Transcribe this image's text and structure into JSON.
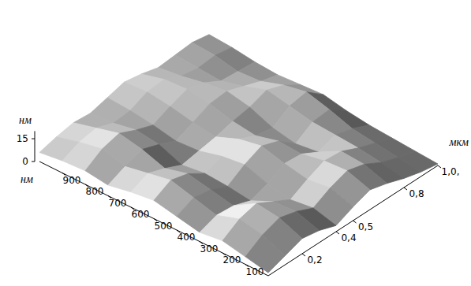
{
  "chart_data": {
    "type": "surface",
    "x_label": "нм",
    "y_label": "мкм",
    "z_label": "нм",
    "x": [
      0,
      100,
      200,
      300,
      400,
      500,
      600,
      700,
      800,
      900,
      1000
    ],
    "y": [
      0,
      0.1,
      0.2,
      0.3,
      0.4,
      0.5,
      0.6,
      0.7,
      0.8,
      0.9,
      1.0
    ],
    "z": [
      [
        2,
        6,
        10,
        8,
        4,
        9,
        13,
        10,
        6,
        3,
        1
      ],
      [
        5,
        12,
        16,
        13,
        8,
        14,
        18,
        15,
        9,
        5,
        2
      ],
      [
        8,
        15,
        18,
        12,
        6,
        12,
        17,
        16,
        11,
        7,
        3
      ],
      [
        6,
        10,
        9,
        5,
        9,
        15,
        14,
        8,
        12,
        9,
        4
      ],
      [
        9,
        14,
        12,
        7,
        14,
        19,
        15,
        6,
        13,
        14,
        6
      ],
      [
        12,
        18,
        15,
        8,
        12,
        16,
        11,
        9,
        16,
        18,
        9
      ],
      [
        10,
        15,
        11,
        6,
        8,
        10,
        13,
        15,
        19,
        15,
        8
      ],
      [
        7,
        12,
        16,
        12,
        7,
        12,
        17,
        18,
        14,
        10,
        7
      ],
      [
        9,
        16,
        19,
        14,
        10,
        15,
        19,
        16,
        10,
        9,
        8
      ],
      [
        8,
        13,
        15,
        11,
        12,
        17,
        18,
        13,
        11,
        12,
        10
      ],
      [
        6,
        9,
        11,
        10,
        13,
        16,
        14,
        11,
        12,
        13,
        11
      ]
    ],
    "xlim": [
      0,
      1000
    ],
    "xticks": [
      100,
      200,
      300,
      400,
      500,
      600,
      700,
      800,
      900
    ],
    "ylim": [
      0,
      1.0
    ],
    "yticks": [
      {
        "value": 0.2,
        "label": "0,2"
      },
      {
        "value": 0.4,
        "label": "0,4"
      },
      {
        "value": 0.5,
        "label": "0,5"
      },
      {
        "value": 0.8,
        "label": "0,8"
      },
      {
        "value": 1.0,
        "label": "1,0,"
      }
    ],
    "zlim": [
      0,
      20
    ],
    "zticks": [
      0,
      15
    ],
    "grid": false
  }
}
